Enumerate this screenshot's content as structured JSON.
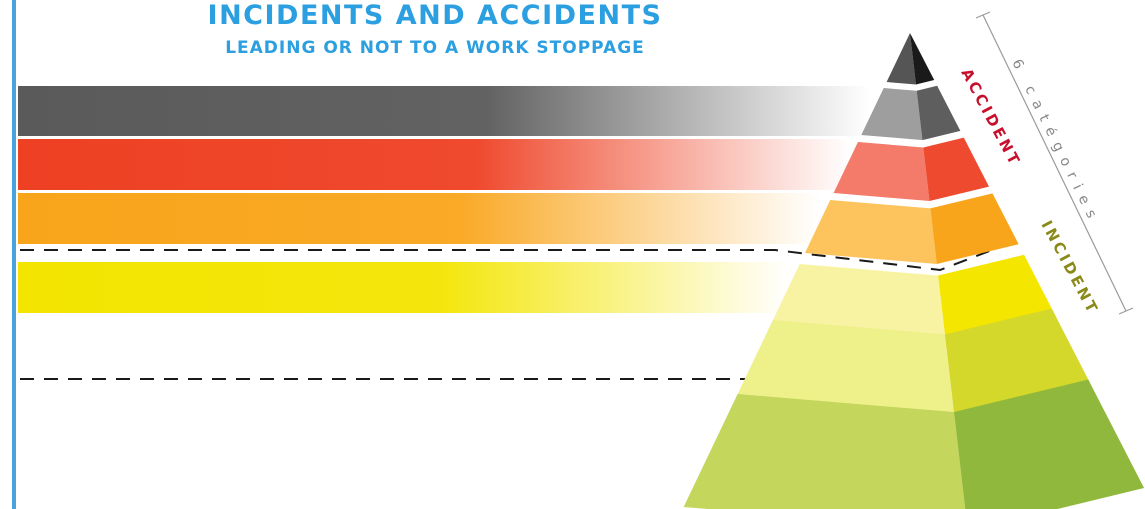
{
  "title": "INCIDENTS AND ACCIDENTS",
  "subtitle": "LEADING OR NOT TO A WORK STOPPAGE",
  "bracket_label": "6 catégories",
  "groups": {
    "accident": {
      "label": "ACCIDENT",
      "color": "#c8102e"
    },
    "incident": {
      "label": "INCIDENT",
      "color": "#8a8a1a"
    }
  },
  "levels": [
    {
      "name": "level-1",
      "group": "accident",
      "light": "#555555",
      "dark": "#1a1a1a",
      "band": "#5a5a5a"
    },
    {
      "name": "level-2",
      "group": "accident",
      "light": "#9e9e9e",
      "dark": "#5e5e5e",
      "band": "#5a5a5a"
    },
    {
      "name": "level-3",
      "group": "accident",
      "light": "#f47a6a",
      "dark": "#ee4a2f",
      "band": "#ee4023"
    },
    {
      "name": "level-4",
      "group": "accident",
      "light": "#fdc35c",
      "dark": "#f9a51b",
      "band": "#f9a51b"
    },
    {
      "name": "level-5",
      "group": "incident",
      "light": "#f8f3a3",
      "dark": "#f5e600",
      "band": "#f3e500"
    },
    {
      "name": "level-6",
      "group": "incident",
      "light": "#eef08a",
      "dark": "#d4d82a",
      "band": null
    },
    {
      "name": "level-7",
      "group": "incident",
      "light": "#c5d65c",
      "dark": "#8fb83d",
      "band": null
    }
  ],
  "colors": {
    "accent": "#2b9fe0",
    "rule": "#4aa3df"
  }
}
